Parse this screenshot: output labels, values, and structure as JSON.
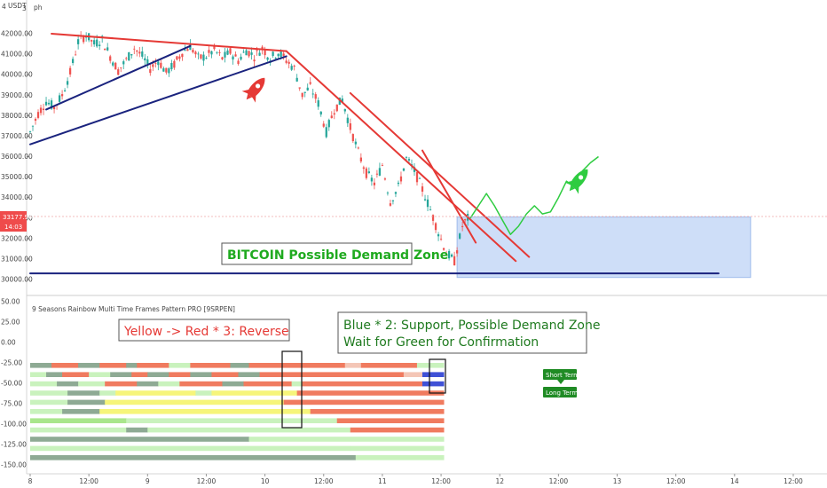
{
  "header": {
    "symbol_prefix": "4",
    "currency": "USDT",
    "sub": "3",
    "suffix": "ph"
  },
  "price_tags": {
    "last_price": "33177.94",
    "countdown": "14:03"
  },
  "indicator_title": "9 Seasons Rainbow Multi Time Frames Pattern PRO [9SRPEN]",
  "annotations": {
    "demand_zone_label": "BITCOIN Possible Demand Zone",
    "reverse_label": "Yellow -> Red * 3:  Reverse",
    "support_line1": "Blue * 2: Support, Possible Demand Zone",
    "support_line2": "Wait for Green for Confirmation",
    "short_term": "Short Term",
    "long_term": "Long Term"
  },
  "colors": {
    "accent_red": "#e53935",
    "trend_blue": "#1a237e",
    "bull_candle": "#26a69a",
    "bear_candle": "#ef5350",
    "demand_zone": "#c6d9f7",
    "projection_green": "#2ecc40",
    "label_green": "#1f8b24",
    "band_yellow": "#f6f57a",
    "band_salmon": "#f07b5f",
    "band_grey_green": "#8eaa94",
    "band_light_green": "#c9f2bd",
    "band_green": "#a9e68c",
    "band_blue": "#3f51d6"
  },
  "chart_data": [
    {
      "type": "candlestick",
      "title": "",
      "y_axis_ticks": [
        "42000.00",
        "41000.00",
        "40000.00",
        "39000.00",
        "38000.00",
        "37000.00",
        "36000.00",
        "35000.00",
        "34000.00",
        "33000.00",
        "32000.00",
        "31000.00",
        "30000.00"
      ],
      "ylim": [
        30000,
        42000
      ],
      "x_axis_ticks": [
        "8",
        "12:00",
        "9",
        "12:00",
        "10",
        "12:00",
        "11",
        "12:00",
        "12",
        "12:00",
        "13",
        "12:00",
        "14",
        "12:00"
      ],
      "close_path": [
        [
          0,
          37200
        ],
        [
          3,
          38100
        ],
        [
          6,
          38700
        ],
        [
          9,
          38400
        ],
        [
          12,
          39000
        ],
        [
          15,
          40100
        ],
        [
          18,
          41600
        ],
        [
          21,
          41950
        ],
        [
          24,
          41500
        ],
        [
          27,
          41700
        ],
        [
          30,
          40900
        ],
        [
          33,
          40200
        ],
        [
          36,
          40700
        ],
        [
          39,
          41300
        ],
        [
          42,
          40900
        ],
        [
          45,
          40300
        ],
        [
          48,
          40700
        ],
        [
          51,
          40100
        ],
        [
          54,
          40500
        ],
        [
          57,
          41100
        ],
        [
          60,
          41400
        ],
        [
          63,
          40800
        ],
        [
          66,
          40900
        ],
        [
          69,
          41200
        ],
        [
          72,
          40800
        ],
        [
          75,
          41100
        ],
        [
          78,
          40700
        ],
        [
          81,
          41200
        ],
        [
          84,
          40900
        ],
        [
          87,
          41300
        ],
        [
          90,
          40800
        ],
        [
          93,
          41100
        ],
        [
          96,
          40700
        ],
        [
          99,
          40300
        ],
        [
          102,
          39000
        ],
        [
          105,
          39400
        ],
        [
          108,
          38600
        ],
        [
          111,
          37200
        ],
        [
          114,
          38300
        ],
        [
          117,
          38800
        ],
        [
          120,
          37400
        ],
        [
          123,
          36200
        ],
        [
          126,
          35200
        ],
        [
          129,
          34700
        ],
        [
          132,
          35600
        ],
        [
          135,
          33800
        ],
        [
          138,
          34500
        ],
        [
          141,
          35900
        ],
        [
          144,
          35300
        ],
        [
          147,
          34400
        ],
        [
          150,
          33400
        ],
        [
          153,
          32300
        ],
        [
          156,
          31300
        ],
        [
          159,
          30900
        ],
        [
          162,
          32600
        ],
        [
          165,
          33180
        ]
      ],
      "last_price": 33177.94,
      "trendlines": [
        {
          "color": "red",
          "from": [
            8,
            42000
          ],
          "to": [
            96,
            41150
          ]
        },
        {
          "color": "red",
          "from": [
            96,
            41150
          ],
          "to": [
            182,
            30900
          ]
        },
        {
          "color": "red",
          "from": [
            120,
            39100
          ],
          "to": [
            187,
            31100
          ]
        },
        {
          "color": "red",
          "from": [
            147,
            36300
          ],
          "to": [
            167,
            31800
          ]
        },
        {
          "color": "blue",
          "from": [
            6,
            38300
          ],
          "to": [
            60,
            41400
          ]
        },
        {
          "color": "blue",
          "from": [
            0,
            36600
          ],
          "to": [
            96,
            40900
          ]
        },
        {
          "color": "blue",
          "from": [
            0,
            30300
          ],
          "to": [
            258,
            30300
          ]
        }
      ],
      "demand_zone": {
        "x_from": 160,
        "x_to": 270,
        "y_from": 30100,
        "y_to": 33050
      },
      "projection": [
        [
          165,
          33000
        ],
        [
          168,
          33600
        ],
        [
          171,
          34200
        ],
        [
          174,
          33600
        ],
        [
          177,
          32900
        ],
        [
          180,
          32200
        ],
        [
          183,
          32600
        ],
        [
          186,
          33200
        ],
        [
          189,
          33600
        ],
        [
          192,
          33200
        ],
        [
          195,
          33300
        ],
        [
          198,
          34000
        ],
        [
          201,
          34800
        ],
        [
          204,
          34500
        ],
        [
          207,
          35300
        ],
        [
          210,
          35700
        ],
        [
          213,
          36000
        ]
      ]
    },
    {
      "type": "heatmap",
      "title": "9 Seasons Rainbow Multi Time Frames Pattern PRO [9SRPEN]",
      "y_axis_ticks": [
        "50.00",
        "25.00",
        "0.00",
        "-25.00",
        "-50.00",
        "-75.00",
        "-100.00",
        "-125.00",
        "-150.00"
      ],
      "ylim": [
        -150,
        50
      ],
      "band_levels": [
        -25,
        -37.5,
        -50,
        -62.5,
        -75,
        -87.5,
        -100,
        -112.5,
        -125,
        -137.5
      ],
      "row_segments": [
        [
          [
            "grey",
            0,
            8
          ],
          [
            "salmon",
            8,
            18
          ],
          [
            "grey",
            18,
            26
          ],
          [
            "salmon",
            26,
            36
          ],
          [
            "grey",
            36,
            40
          ],
          [
            "salmon",
            40,
            52
          ],
          [
            "lightgreen",
            52,
            60
          ],
          [
            "salmon",
            60,
            75
          ],
          [
            "grey",
            75,
            82
          ],
          [
            "salmon",
            82,
            118
          ],
          [
            "pink",
            118,
            124
          ],
          [
            "salmon",
            124,
            145
          ],
          [
            "lightgreen",
            145,
            155
          ]
        ],
        [
          [
            "lightgreen",
            0,
            6
          ],
          [
            "grey",
            6,
            12
          ],
          [
            "salmon",
            12,
            22
          ],
          [
            "lightgreen",
            22,
            30
          ],
          [
            "grey",
            30,
            38
          ],
          [
            "salmon",
            38,
            44
          ],
          [
            "grey",
            44,
            52
          ],
          [
            "salmon",
            52,
            60
          ],
          [
            "grey",
            60,
            68
          ],
          [
            "salmon",
            68,
            78
          ],
          [
            "grey",
            78,
            86
          ],
          [
            "salmon",
            86,
            140
          ],
          [
            "pink",
            140,
            147
          ],
          [
            "blue",
            147,
            155
          ]
        ],
        [
          [
            "lightgreen",
            0,
            10
          ],
          [
            "grey",
            10,
            18
          ],
          [
            "lightgreen",
            18,
            28
          ],
          [
            "salmon",
            28,
            40
          ],
          [
            "grey",
            40,
            48
          ],
          [
            "lightgreen",
            48,
            56
          ],
          [
            "salmon",
            56,
            72
          ],
          [
            "grey",
            72,
            80
          ],
          [
            "salmon",
            80,
            98
          ],
          [
            "lightgreen",
            98,
            102
          ],
          [
            "salmon",
            102,
            147
          ],
          [
            "blue",
            147,
            155
          ]
        ],
        [
          [
            "lightgreen",
            0,
            14
          ],
          [
            "grey",
            14,
            26
          ],
          [
            "lightgreen",
            26,
            32
          ],
          [
            "yellow",
            32,
            62
          ],
          [
            "lightgreen",
            62,
            68
          ],
          [
            "yellow",
            68,
            100
          ],
          [
            "salmon",
            100,
            155
          ]
        ],
        [
          [
            "lightgreen",
            0,
            14
          ],
          [
            "grey",
            14,
            28
          ],
          [
            "yellow",
            28,
            95
          ],
          [
            "salmon",
            95,
            155
          ]
        ],
        [
          [
            "lightgreen",
            0,
            12
          ],
          [
            "grey",
            12,
            26
          ],
          [
            "yellow",
            26,
            105
          ],
          [
            "salmon",
            105,
            155
          ]
        ],
        [
          [
            "green",
            0,
            36
          ],
          [
            "lightgreen",
            36,
            115
          ],
          [
            "salmon",
            115,
            155
          ]
        ],
        [
          [
            "lightgreen",
            0,
            36
          ],
          [
            "grey",
            36,
            44
          ],
          [
            "lightgreen",
            44,
            120
          ],
          [
            "salmon",
            120,
            155
          ]
        ],
        [
          [
            "grey",
            0,
            82
          ],
          [
            "lightgreen",
            82,
            155
          ]
        ],
        [
          [
            "lightgreen",
            0,
            120
          ],
          [
            "lightgreen",
            120,
            155
          ]
        ],
        [
          [
            "grey",
            0,
            122
          ],
          [
            "lightgreen",
            122,
            155
          ]
        ]
      ]
    }
  ]
}
